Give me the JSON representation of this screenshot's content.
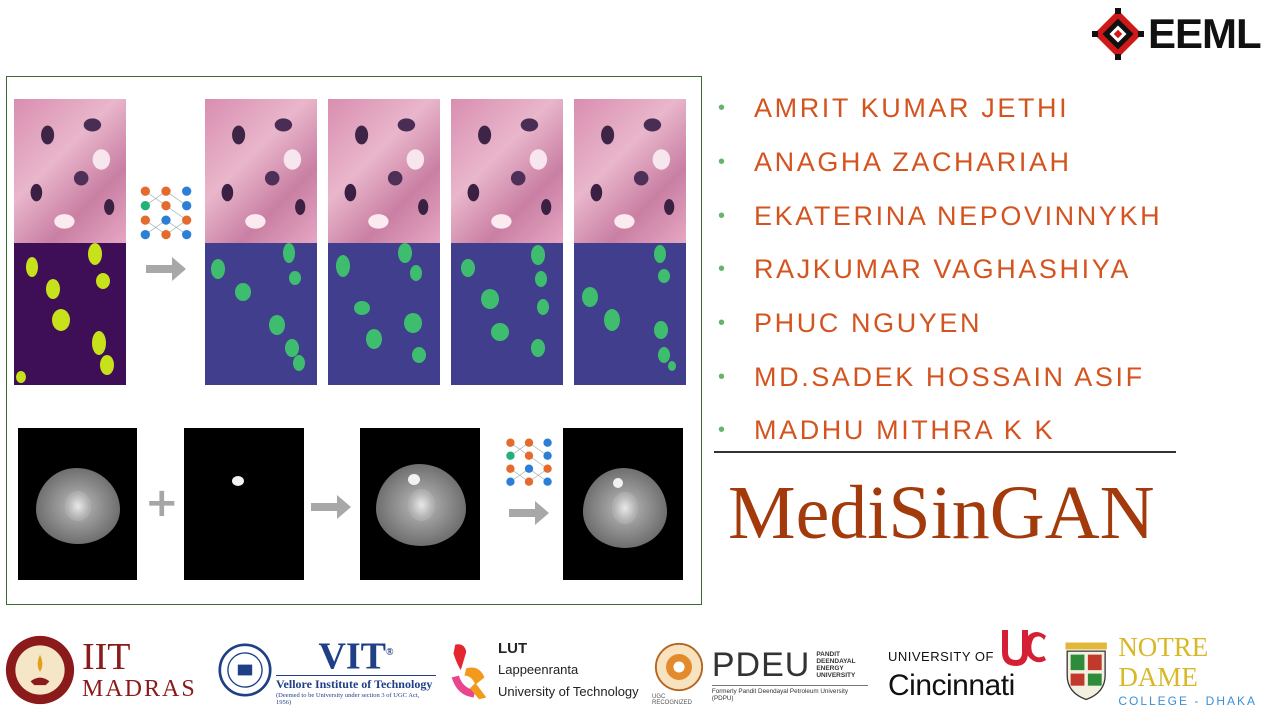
{
  "header": {
    "logo_text": "EEML",
    "logo_icon": "eeml-snowflake-icon"
  },
  "figure": {
    "arrow_icon": "right-arrow-icon",
    "network_icon": "neural-network-icon",
    "plus_symbol": "+"
  },
  "authors": [
    "AMRIT KUMAR JETHI",
    "ANAGHA ZACHARIAH",
    "EKATERINA NEPOVINNYKH",
    "RAJKUMAR VAGHASHIYA",
    "PHUC NGUYEN",
    "MD.SADEK HOSSAIN ASIF",
    "MADHU MITHRA K K"
  ],
  "bullet": "•",
  "title": "MediSinGAN",
  "logos": {
    "iit": {
      "line1": "IIT",
      "line2": "MADRAS"
    },
    "vit": {
      "name": "VIT",
      "reg": "®",
      "full": "Vellore Institute of Technology",
      "note": "(Deemed to be University under section 3 of UGC Act, 1956)"
    },
    "lut": {
      "short": "LUT",
      "line1": "Lappeenranta",
      "line2": "University of Technology"
    },
    "pdeu": {
      "short": "PDEU",
      "side1": "PANDIT",
      "side2": "DEENDAYAL",
      "side3": "ENERGY",
      "side4": "UNIVERSITY",
      "former": "Formerly Pandit Deendayal Petroleum University (PDPU)",
      "ugc": "UGC RECOGNIZED"
    },
    "uc": {
      "line1": "UNIVERSITY OF",
      "line2": "Cincinnati"
    },
    "ndc": {
      "line1": "NOTRE DAME",
      "line2": "COLLEGE - DHAKA"
    }
  },
  "colors": {
    "author_text": "#d4541f",
    "bullet": "#66b46a",
    "title": "#a33a0c",
    "panel_border": "#3a6b2f"
  }
}
